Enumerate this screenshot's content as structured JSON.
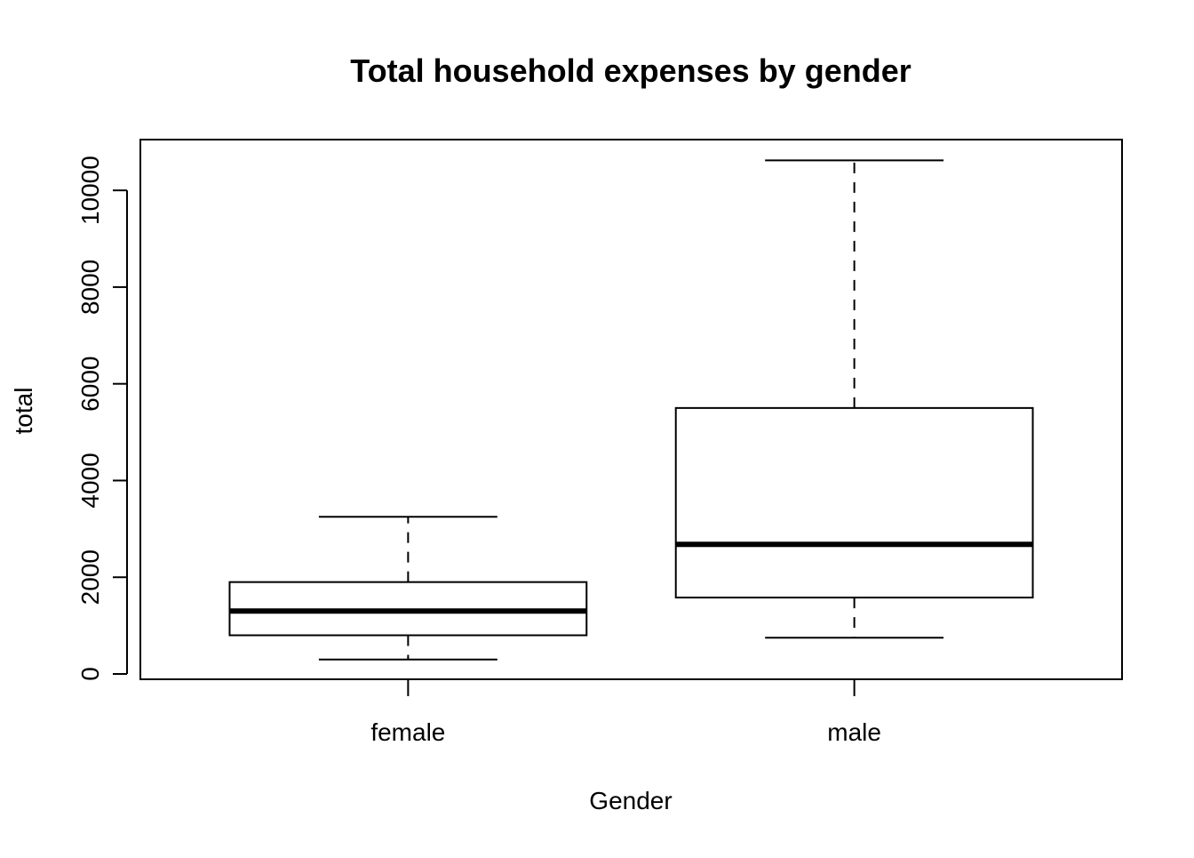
{
  "chart_data": {
    "type": "boxplot",
    "title": "Total household expenses by gender",
    "xlabel": "Gender",
    "ylabel": "total",
    "categories": [
      "female",
      "male"
    ],
    "boxes": [
      {
        "category": "female",
        "whisker_low": 300,
        "q1": 800,
        "median": 1300,
        "q3": 1900,
        "whisker_high": 3250
      },
      {
        "category": "male",
        "whisker_low": 750,
        "q1": 1580,
        "median": 2680,
        "q3": 5500,
        "whisker_high": 10620
      }
    ],
    "ylim": [
      -110,
      11050
    ],
    "yticks": [
      0,
      2000,
      4000,
      6000,
      8000,
      10000
    ],
    "grid": false,
    "legend": "none"
  }
}
